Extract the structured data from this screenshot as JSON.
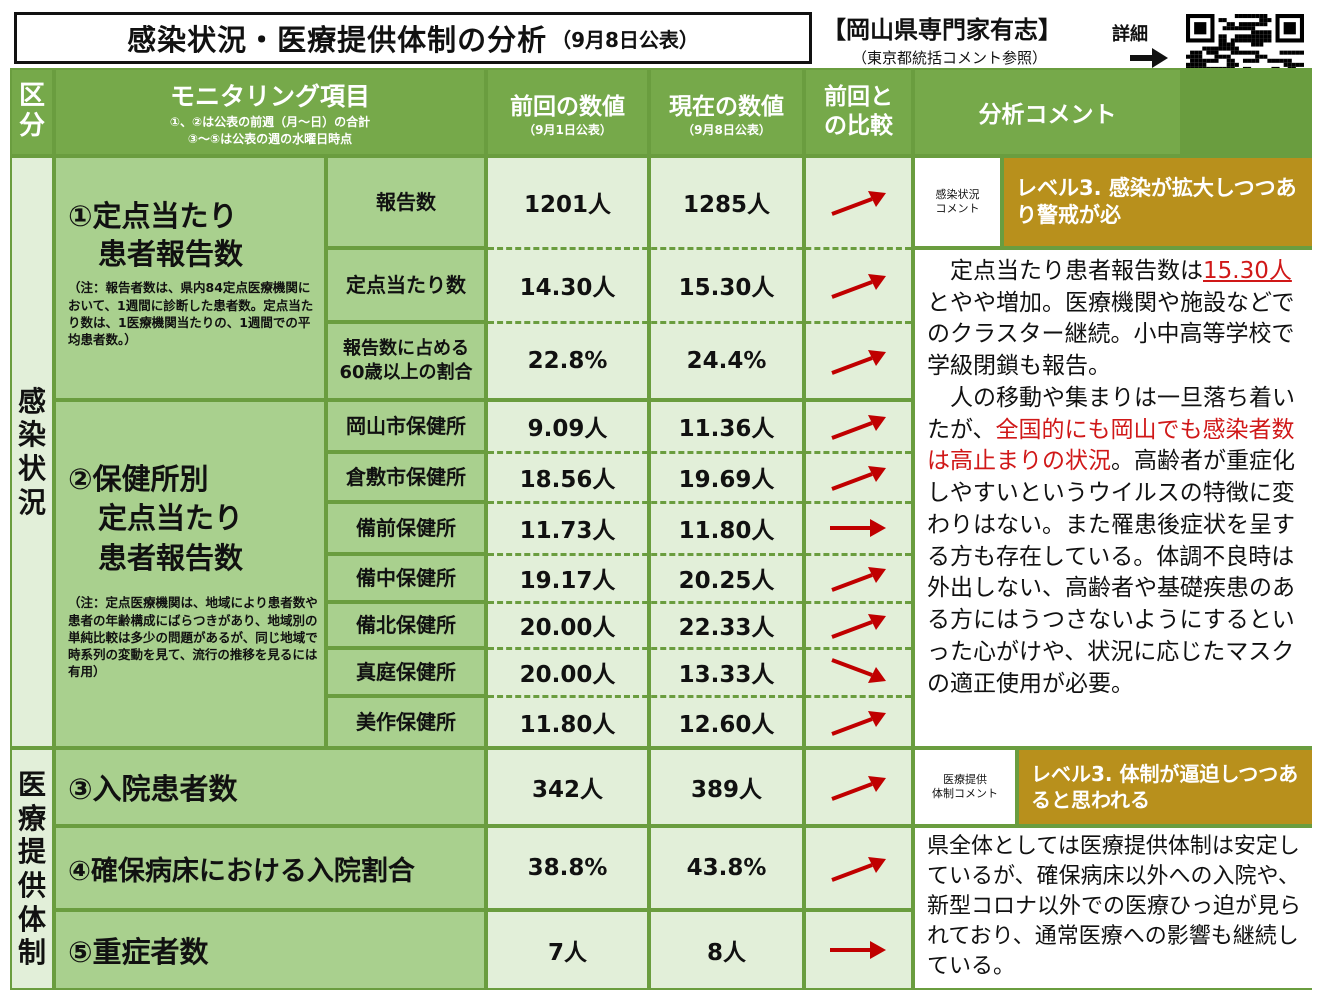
{
  "title": {
    "main": "感染状況・医療提供体制の分析",
    "sub": "（9月8日公表）"
  },
  "org": {
    "line1": "【岡山県専門家有志】",
    "line2": "（東京都統括コメント参照）",
    "detail": "詳細"
  },
  "header": {
    "kubun": [
      "区",
      "分"
    ],
    "monitoring": "モニタリング項目",
    "monitoring_note1": "①、②は公表の前週（月～日）の合計",
    "monitoring_note2": "③～⑤は公表の週の水曜日時点",
    "prev": "前回の数値",
    "prev_date": "（9月1日公表）",
    "curr": "現在の数値",
    "curr_date": "（9月8日公表）",
    "compare": [
      "前回と",
      "の比較"
    ],
    "analysis": "分析コメント"
  },
  "sections": {
    "infection": [
      "感",
      "染",
      "状",
      "況"
    ],
    "medical": [
      "医",
      "療",
      "提",
      "供",
      "体",
      "制"
    ]
  },
  "items": {
    "item1": [
      "①定点当たり",
      "患者報告数"
    ],
    "item1_note": "（注：報告者数は、県内84定点医療機関において、1週間に診断した患者数。定点当たり数は、1医療機関当たりの、1週間での平均患者数。）",
    "item2": [
      "②保健所別",
      "定点当たり",
      "患者報告数"
    ],
    "item2_note": "（注：定点医療機関は、地域により患者数や患者の年齢構成にばらつきがあり、地域別の単純比較は多少の問題があるが、同じ地域で時系列の変動を見て、流行の推移を見るには有用）",
    "item3": "③入院患者数",
    "item4": "④確保病床における入院割合",
    "item5": "⑤重症者数"
  },
  "rows": [
    {
      "label": "報告数",
      "prev": "1201人",
      "curr": "1285人",
      "trend": "up"
    },
    {
      "label": "定点当たり数",
      "prev": "14.30人",
      "curr": "15.30人",
      "trend": "up"
    },
    {
      "label": "報告数に占める\n60歳以上の割合",
      "prev": "22.8%",
      "curr": "24.4%",
      "trend": "up"
    },
    {
      "label": "岡山市保健所",
      "prev": "9.09人",
      "curr": "11.36人",
      "trend": "up"
    },
    {
      "label": "倉敷市保健所",
      "prev": "18.56人",
      "curr": "19.69人",
      "trend": "up"
    },
    {
      "label": "備前保健所",
      "prev": "11.73人",
      "curr": "11.80人",
      "trend": "flat"
    },
    {
      "label": "備中保健所",
      "prev": "19.17人",
      "curr": "20.25人",
      "trend": "up"
    },
    {
      "label": "備北保健所",
      "prev": "20.00人",
      "curr": "22.33人",
      "trend": "up"
    },
    {
      "label": "真庭保健所",
      "prev": "20.00人",
      "curr": "13.33人",
      "trend": "down"
    },
    {
      "label": "美作保健所",
      "prev": "11.80人",
      "curr": "12.60人",
      "trend": "up"
    },
    {
      "label": "",
      "prev": "342人",
      "curr": "389人",
      "trend": "up"
    },
    {
      "label": "",
      "prev": "38.8%",
      "curr": "43.8%",
      "trend": "up"
    },
    {
      "label": "",
      "prev": "7人",
      "curr": "8人",
      "trend": "flat"
    }
  ],
  "infection_comment": {
    "tag": [
      "感染状況",
      "コメント"
    ],
    "level": "レベル3. 感染が拡大しつつあり警戒が必",
    "p1_a": "　定点当たり患者報告数は",
    "p1_hl": "15.30人",
    "p1_b": "とやや増加。医療機関や施設などでのクラスター継続。小中高等学校で学級閉鎖も報告。",
    "p2_a": "　人の移動や集まりは一旦落ち着いたが、",
    "p2_hl": "全国的にも岡山でも感染者数は高止まりの状況",
    "p2_b": "。高齢者が重症化しやすいというウイルスの特徴に変わりはない。また罹患後症状を呈する方も存在している。体調不良時は外出しない、高齢者や基礎疾患のある方にはうつさないようにするといった心がけや、状況に応じたマスクの適正使用が必要。"
  },
  "medical_comment": {
    "tag": [
      "医療提供",
      "体制コメント"
    ],
    "level": "レベル3. 体制が逼迫しつつあると思われる",
    "text": "県全体としては医療提供体制は安定しているが、確保病床以外への入院や、新型コロナ以外での医療ひっ迫が見られており、通常医療への影響も継続している。"
  },
  "colors": {
    "header": "#76a94a",
    "item": "#a9d08e",
    "pale": "#e2efd9",
    "level": "#b8901c",
    "arrow": "#c00000",
    "highlight": "#d01818"
  },
  "icons": [
    "right-arrow-icon",
    "qr-code-icon",
    "trend-up-icon",
    "trend-flat-icon",
    "trend-down-icon"
  ]
}
